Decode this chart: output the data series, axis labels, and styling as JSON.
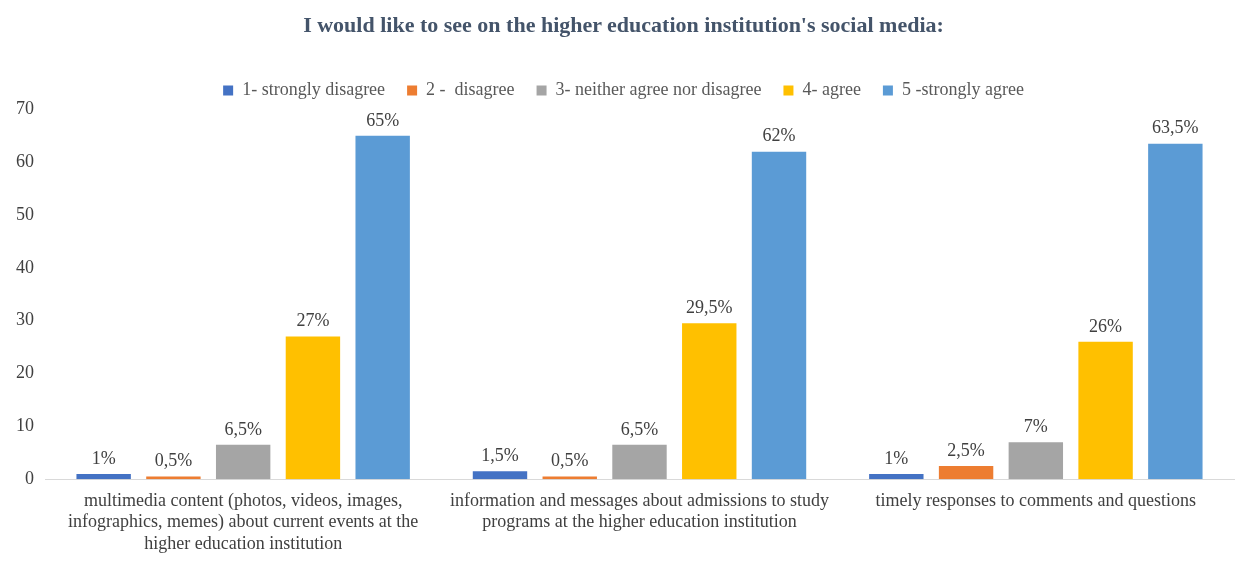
{
  "chart_data": {
    "type": "bar",
    "title": "I would like to see on the higher education institution's social media:",
    "categories": [
      "multimedia content (photos, videos, images, infographics, memes) about current events at the higher education institution",
      "information and messages about admissions to study programs at the higher education institution",
      "timely responses to comments and questions"
    ],
    "series": [
      {
        "name": "1- strongly disagree",
        "color": "#4472c4",
        "values": [
          1,
          1.5,
          1
        ],
        "value_labels": [
          "1%",
          "1,5%",
          "1%"
        ]
      },
      {
        "name": "2 -  disagree",
        "color": "#ed7d31",
        "values": [
          0.5,
          0.5,
          2.5
        ],
        "value_labels": [
          "0,5%",
          "0,5%",
          "2,5%"
        ]
      },
      {
        "name": "3- neither agree nor disagree",
        "color": "#a5a5a5",
        "values": [
          6.5,
          6.5,
          7
        ],
        "value_labels": [
          "6,5%",
          "6,5%",
          "7%"
        ]
      },
      {
        "name": "4- agree",
        "color": "#ffc000",
        "values": [
          27,
          29.5,
          26
        ],
        "value_labels": [
          "27%",
          "29,5%",
          "26%"
        ]
      },
      {
        "name": "5 -strongly agree",
        "color": "#5b9bd5",
        "values": [
          65,
          62,
          63.5
        ],
        "value_labels": [
          "65%",
          "62%",
          "63,5%"
        ]
      }
    ],
    "ylim": [
      0,
      70
    ],
    "yticks": [
      0,
      10,
      20,
      30,
      40,
      50,
      60,
      70
    ],
    "grid": false,
    "legend": "top"
  }
}
